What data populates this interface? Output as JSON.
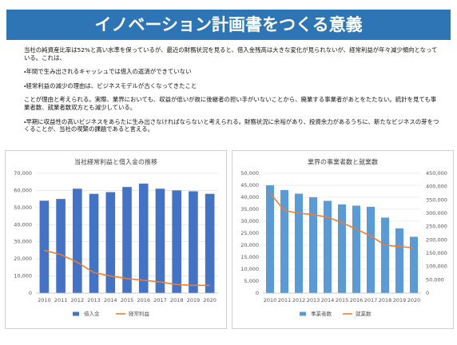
{
  "title": "イノベーション計画書をつくる意義",
  "paragraphs": [
    "当社の純資産比率は52%と高い水準を保っているが、最近の財務状況を見ると、借入金残高は大きな変化が見られないが、経常利益が年々減少傾向となっている。これは、",
    "・年間で生み出されるキャッシュでは借入の返済ができていない",
    "・経常利益の減少の理由は、ビジネスモデルが古くなってきたこと",
    "ことが理由と考えられる。実際、業界においても、収益が低いが故に後継者の担い手がいないことから、廃業する事業者があとをたたない。統計を見ても事業者数、就業者数双方とも減少している。",
    "・早期に収益性の高いビジネスをあらたに生み出さなければならないと考えられる。財務状況に余裕があり、投資余力があるうちに、新たなビジネスの芽をつくることが、当社の喫緊の課題であると言える。"
  ],
  "chart_data": [
    {
      "type": "bar",
      "title": "当社経常利益と借入金の推移",
      "categories": [
        "2010",
        "2011",
        "2012",
        "2013",
        "2014",
        "2015",
        "2016",
        "2017",
        "2018",
        "2019",
        "2020"
      ],
      "series": [
        {
          "name": "借入金",
          "type": "bar",
          "color": "#4472c4",
          "values": [
            54000,
            55000,
            61000,
            58000,
            59000,
            62000,
            64000,
            61000,
            60000,
            59500,
            58000
          ]
        },
        {
          "name": "経常利益",
          "type": "line",
          "color": "#ed7d31",
          "values": [
            25000,
            22500,
            18000,
            12000,
            10000,
            8500,
            7500,
            6500,
            5000,
            4500,
            4500
          ]
        }
      ],
      "ylim": [
        0,
        70000
      ],
      "yticks": [
        0,
        {
          "value": 10000,
          "label": "10,000"
        },
        {
          "value": 20000,
          "label": "20,000"
        },
        {
          "value": 30000,
          "label": "30,000"
        },
        {
          "value": 40000,
          "label": "40,000"
        },
        {
          "value": 50000,
          "label": "50,000"
        },
        {
          "value": 60000,
          "label": "60,000"
        },
        {
          "value": 70000,
          "label": "70,000"
        }
      ],
      "grid": true
    },
    {
      "type": "bar",
      "title": "業界の事業者数と就業数",
      "categories": [
        "2010",
        "2011",
        "2012",
        "2013",
        "2014",
        "2015",
        "2016",
        "2017",
        "2018",
        "2019",
        "2020"
      ],
      "series": [
        {
          "name": "事業者数",
          "type": "bar",
          "color": "#5b9bd5",
          "values": [
            45000,
            43000,
            41500,
            40000,
            38500,
            37000,
            36500,
            36000,
            31500,
            27000,
            23500
          ]
        },
        {
          "name": "就業数",
          "type": "line",
          "axis": "y2",
          "color": "#ed7d31",
          "values": [
            375000,
            310000,
            300000,
            295000,
            285000,
            265000,
            240000,
            215000,
            180000,
            175000,
            170000
          ]
        }
      ],
      "ylim": [
        0,
        50000
      ],
      "yticks": [
        0,
        {
          "value": 5000,
          "label": "5,000"
        },
        {
          "value": 10000,
          "label": "10,000"
        },
        {
          "value": 15000,
          "label": "15,000"
        },
        {
          "value": 20000,
          "label": "20,000"
        },
        {
          "value": 25000,
          "label": "25,000"
        },
        {
          "value": 30000,
          "label": "30,000"
        },
        {
          "value": 35000,
          "label": "35,000"
        },
        {
          "value": 40000,
          "label": "40,000"
        },
        {
          "value": 45000,
          "label": "45,000"
        },
        {
          "value": 50000,
          "label": "50,000"
        }
      ],
      "y2lim": [
        0,
        450000
      ],
      "y2ticks": [
        0,
        {
          "value": 50000,
          "label": "50,000"
        },
        {
          "value": 100000,
          "label": "100,000"
        },
        {
          "value": 150000,
          "label": "150,000"
        },
        {
          "value": 200000,
          "label": "200,000"
        },
        {
          "value": 250000,
          "label": "250,000"
        },
        {
          "value": 300000,
          "label": "300,000"
        },
        {
          "value": 350000,
          "label": "350,000"
        },
        {
          "value": 400000,
          "label": "400,000"
        },
        {
          "value": 450000,
          "label": "450,000"
        }
      ],
      "grid": true
    }
  ]
}
